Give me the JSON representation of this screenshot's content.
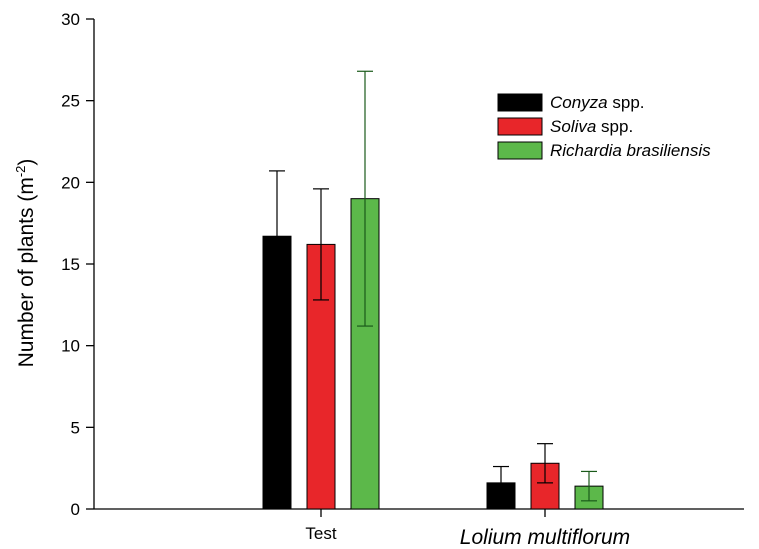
{
  "chart_data": {
    "type": "bar",
    "categories": [
      "Test",
      "Lolium multiflorum"
    ],
    "category_italic": [
      false,
      true
    ],
    "ylabel_text": "Number of plants (m",
    "ylabel_sup": "-2",
    "ylabel_close": ")",
    "ylim": [
      0,
      30
    ],
    "yticks": [
      0,
      5,
      10,
      15,
      20,
      25,
      30
    ],
    "grid": false,
    "legend_position": "top-right",
    "series": [
      {
        "name_italic": "Conyza",
        "name_rest": " spp.",
        "color": "#000000",
        "values": [
          16.7,
          1.6
        ],
        "errors": [
          4.0,
          1.0
        ],
        "error_color": "#000000"
      },
      {
        "name_italic": "Soliva",
        "name_rest": " spp.",
        "color": "#e8262a",
        "values": [
          16.2,
          2.8
        ],
        "errors": [
          3.4,
          1.2
        ],
        "error_color": "#000000"
      },
      {
        "name_italic": "Richardia brasiliensis",
        "name_rest": "",
        "color": "#5cb84a",
        "values": [
          19.0,
          1.4
        ],
        "errors": [
          7.8,
          0.9
        ],
        "error_color": "#1a5a1a"
      }
    ]
  }
}
